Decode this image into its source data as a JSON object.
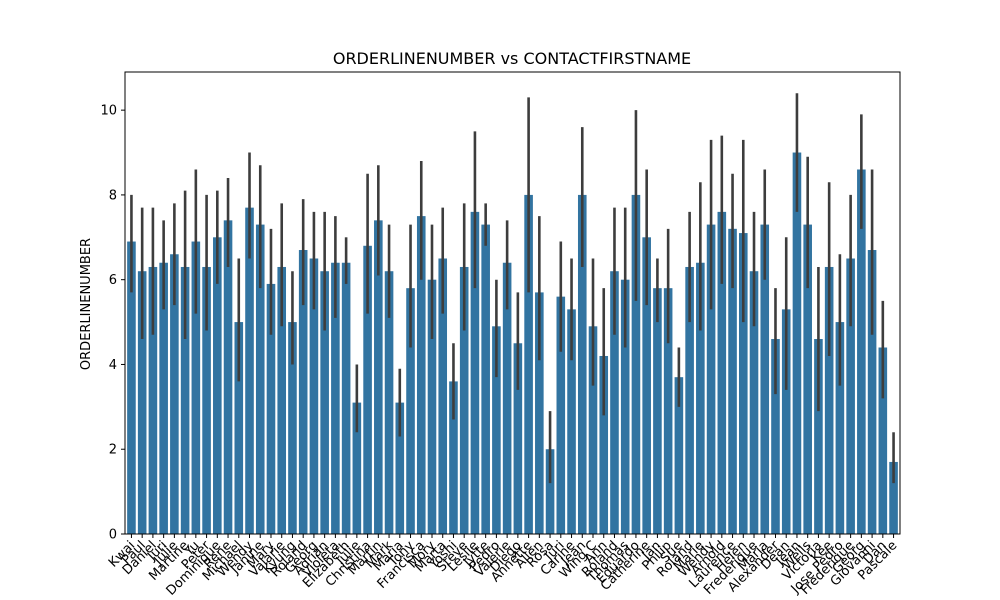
{
  "chart_data": {
    "type": "bar",
    "title": "ORDERLINENUMBER vs CONTACTFIRSTNAME",
    "xlabel": "",
    "ylabel": "ORDERLINENUMBER",
    "ylim": [
      0,
      10.9
    ],
    "yticks": [
      0,
      2,
      4,
      6,
      8,
      10
    ],
    "grid": false,
    "bar_color": "#3274a1",
    "error_color": "#3d3d3d",
    "categories": [
      "Kwai",
      "Paul",
      "Daniel",
      "Juri",
      "Julie",
      "Martine",
      "Yu",
      "Peter",
      "Dominique",
      "Rene",
      "Michael",
      "Wendy",
      "Janine",
      "Mary",
      "Valarie",
      "Kyung",
      "Roland",
      "Georg",
      "Adrian",
      "Violeta",
      "Elizabeth",
      "Julie",
      "Christina",
      "Martin",
      "Mark",
      "Maria",
      "Tony",
      "Francisca",
      "Mory",
      "Marta",
      "Yoshi",
      "Steve",
      "Leslie",
      "Jytte",
      "Pedro",
      "Valerie",
      "Diego",
      "Annette",
      "Allen",
      "Rosa",
      "Juri",
      "Carine",
      "Jean",
      "Wing C",
      "Ann",
      "Roland",
      "Thomas",
      "Eduardo",
      "Catherine",
      "Jan",
      "Philip",
      "Sue",
      "Roland",
      "Marie",
      "Wendy",
      "Arnold",
      "Laurence",
      "Helen",
      "Frederique",
      "Maria",
      "Alexander",
      "Dean",
      "Jean",
      "Wells",
      "Victoria",
      "Kee",
      "Jose Pedro",
      "Frederique",
      "Georg",
      "Giovanni",
      "Dan",
      "Pascale"
    ],
    "values": [
      6.9,
      6.2,
      6.3,
      6.4,
      6.6,
      6.3,
      6.9,
      6.3,
      7.0,
      7.4,
      5.0,
      7.7,
      7.3,
      5.9,
      6.3,
      5.0,
      6.7,
      6.5,
      6.2,
      6.4,
      6.4,
      3.1,
      6.8,
      7.4,
      6.2,
      3.1,
      5.8,
      7.5,
      6.0,
      6.5,
      3.6,
      6.3,
      7.6,
      7.3,
      4.9,
      6.4,
      4.5,
      8.0,
      5.7,
      2.0,
      5.6,
      5.3,
      8.0,
      4.9,
      4.2,
      6.2,
      6.0,
      8.0,
      7.0,
      5.8,
      5.8,
      3.7,
      6.3,
      6.4,
      7.3,
      7.6,
      7.2,
      7.1,
      6.2,
      7.3,
      4.6,
      5.3,
      9.0,
      7.3,
      4.6,
      6.3,
      5.0,
      6.5,
      8.6,
      6.7,
      4.4,
      1.7
    ],
    "error_low": [
      5.7,
      4.6,
      4.7,
      5.3,
      5.4,
      4.6,
      5.2,
      4.8,
      5.9,
      6.3,
      3.6,
      6.5,
      5.8,
      4.7,
      4.9,
      4.0,
      5.4,
      5.3,
      4.8,
      5.1,
      5.9,
      2.4,
      5.2,
      6.1,
      5.1,
      2.3,
      4.4,
      6.0,
      4.6,
      5.2,
      2.7,
      4.8,
      5.8,
      6.8,
      3.7,
      5.3,
      3.4,
      5.7,
      4.1,
      1.2,
      4.3,
      4.1,
      6.3,
      3.5,
      2.8,
      4.7,
      4.4,
      5.5,
      5.4,
      5.0,
      4.5,
      3.0,
      5.0,
      4.8,
      5.3,
      5.9,
      5.8,
      5.0,
      4.9,
      6.0,
      3.3,
      3.4,
      7.6,
      5.8,
      2.9,
      4.2,
      3.5,
      4.9,
      7.2,
      4.7,
      3.2,
      1.2
    ],
    "error_high": [
      8.0,
      7.7,
      7.7,
      7.4,
      7.8,
      8.1,
      8.6,
      8.0,
      8.1,
      8.4,
      6.5,
      9.0,
      8.7,
      7.2,
      7.8,
      6.2,
      7.9,
      7.6,
      7.6,
      7.5,
      7.0,
      4.0,
      8.5,
      8.7,
      7.3,
      3.9,
      7.3,
      8.8,
      7.3,
      7.7,
      4.5,
      7.8,
      9.5,
      7.8,
      6.0,
      7.4,
      5.7,
      10.3,
      7.5,
      2.9,
      6.9,
      6.5,
      9.6,
      6.5,
      5.8,
      7.7,
      7.7,
      10.0,
      8.6,
      6.5,
      7.2,
      4.4,
      7.6,
      8.3,
      9.3,
      9.4,
      8.5,
      9.3,
      7.6,
      8.6,
      5.8,
      7.0,
      10.4,
      8.9,
      6.3,
      8.3,
      6.6,
      8.0,
      9.9,
      8.6,
      5.5,
      2.4
    ]
  }
}
